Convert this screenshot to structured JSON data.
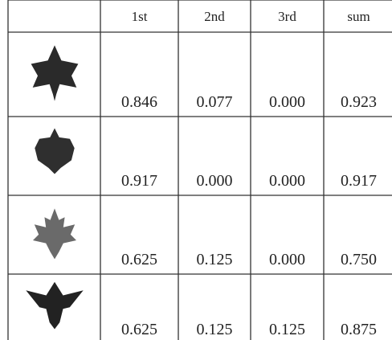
{
  "table": {
    "header": [
      "1st",
      "2nd",
      "3rd",
      "sum"
    ],
    "rows": [
      [
        "0.846",
        "0.077",
        "0.000",
        "0.923"
      ],
      [
        "0.917",
        "0.000",
        "0.000",
        "0.917"
      ],
      [
        "0.625",
        "0.125",
        "0.000",
        "0.750"
      ],
      [
        "0.625",
        "0.125",
        "0.125",
        "0.875"
      ]
    ]
  }
}
